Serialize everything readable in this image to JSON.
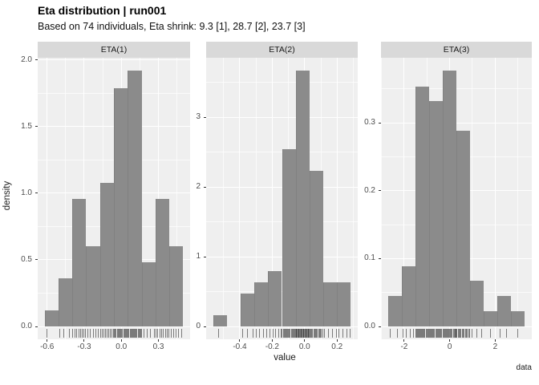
{
  "title": "Eta distribution | run001",
  "subtitle": "Based on 74 individuals, Eta shrink: 9.3 [1], 28.7 [2], 23.7 [3]",
  "caption": "data",
  "axes": {
    "x_label": "value",
    "y_label": "density"
  },
  "colors": {
    "bar": "#8B8B8B",
    "bar_seam": "rgba(0,0,0,0.07)",
    "panel_bg": "#EFEFEF",
    "strip_bg": "#D9D9D9",
    "grid_major": "#FFFFFF",
    "grid_minor": "rgba(255,255,255,0.65)",
    "axis_text": "#4D4D4D",
    "tick_mark": "#333333",
    "rug": "rgba(26,26,26,0.55)"
  },
  "chart_data": {
    "type": "bar",
    "subtype": "faceted-histogram-density",
    "grid": true,
    "legend": "none",
    "facets": [
      {
        "label": "ETA(1)",
        "x_range": [
          -0.676,
          0.556
        ],
        "y_range": [
          -0.096,
          2.016
        ],
        "x_ticks": {
          "values": [
            -0.6,
            -0.3,
            0.0,
            0.3
          ],
          "labels": [
            "-0.6",
            "-0.3",
            "0.0",
            "0.3"
          ]
        },
        "y_ticks": {
          "values": [
            0.0,
            0.5,
            1.0,
            1.5,
            2.0
          ],
          "labels": [
            "0.0",
            "0.5",
            "1.0",
            "1.5",
            "2.0"
          ]
        },
        "x_minor": [
          -0.45,
          -0.15,
          0.15,
          0.45
        ],
        "y_minor": [
          0.25,
          0.75,
          1.25,
          1.75
        ],
        "bins": {
          "start": -0.62,
          "width": 0.112
        },
        "densities": [
          0.12,
          0.36,
          0.96,
          0.6,
          1.08,
          1.79,
          1.92,
          0.48,
          0.96,
          0.6
        ],
        "rug": [
          -0.6,
          -0.5,
          -0.465,
          -0.42,
          -0.392,
          -0.377,
          -0.363,
          -0.344,
          -0.331,
          -0.318,
          -0.304,
          -0.289,
          -0.272,
          -0.252,
          -0.228,
          -0.206,
          -0.188,
          -0.17,
          -0.156,
          -0.141,
          -0.128,
          -0.113,
          -0.101,
          -0.09,
          -0.077,
          -0.064,
          -0.056,
          -0.048,
          -0.041,
          -0.033,
          -0.026,
          -0.018,
          -0.011,
          -0.004,
          0.004,
          0.011,
          0.019,
          0.026,
          0.034,
          0.041,
          0.049,
          0.056,
          0.063,
          0.07,
          0.077,
          0.085,
          0.092,
          0.099,
          0.106,
          0.113,
          0.121,
          0.128,
          0.135,
          0.143,
          0.15,
          0.157,
          0.163,
          0.182,
          0.208,
          0.238,
          0.268,
          0.281,
          0.296,
          0.31,
          0.325,
          0.341,
          0.356,
          0.371,
          0.386,
          0.401,
          0.422,
          0.443,
          0.465,
          0.488
        ]
      },
      {
        "label": "ETA(2)",
        "x_range": [
          -0.6075,
          0.3275
        ],
        "y_range": [
          -0.184,
          3.854
        ],
        "x_ticks": {
          "values": [
            -0.4,
            -0.2,
            0.0,
            0.2
          ],
          "labels": [
            "-0.4",
            "-0.2",
            "0.0",
            "0.2"
          ]
        },
        "y_ticks": {
          "values": [
            0,
            1,
            2,
            3
          ],
          "labels": [
            "0",
            "1",
            "2",
            "3"
          ]
        },
        "x_minor": [
          -0.5,
          -0.3,
          -0.1,
          0.1,
          0.3
        ],
        "y_minor": [
          0.5,
          1.5,
          2.5,
          3.5
        ],
        "bins": {
          "start": -0.565,
          "width": 0.085
        },
        "densities": [
          0.16,
          0,
          0.47,
          0.63,
          0.79,
          2.54,
          3.67,
          2.23,
          0.63,
          0.63
        ],
        "rug": [
          -0.53,
          -0.38,
          -0.352,
          -0.318,
          -0.3,
          -0.278,
          -0.254,
          -0.232,
          -0.214,
          -0.196,
          -0.179,
          -0.162,
          -0.147,
          -0.138,
          -0.1325,
          -0.127,
          -0.1215,
          -0.116,
          -0.1105,
          -0.105,
          -0.0995,
          -0.094,
          -0.0885,
          -0.083,
          -0.0775,
          -0.072,
          -0.0665,
          -0.061,
          -0.0555,
          -0.0525,
          -0.0488,
          -0.0451,
          -0.0414,
          -0.0377,
          -0.034,
          -0.0303,
          -0.0266,
          -0.0229,
          -0.0192,
          -0.0155,
          -0.0118,
          -0.0081,
          -0.0044,
          -0.0007,
          0.003,
          0.0067,
          0.0104,
          0.0141,
          0.0178,
          0.0215,
          0.0252,
          0.0289,
          0.032,
          0.038,
          0.044,
          0.05,
          0.056,
          0.062,
          0.068,
          0.074,
          0.08,
          0.086,
          0.092,
          0.098,
          0.104,
          0.11,
          0.124,
          0.149,
          0.173,
          0.196,
          0.212,
          0.236,
          0.259,
          0.281
        ]
      },
      {
        "label": "ETA(3)",
        "x_range": [
          -3.02,
          3.61
        ],
        "y_range": [
          -0.0189,
          0.3959
        ],
        "x_ticks": {
          "values": [
            -2,
            0,
            2
          ],
          "labels": [
            "-2",
            "0",
            "2"
          ]
        },
        "y_ticks": {
          "values": [
            0.0,
            0.1,
            0.2,
            0.3
          ],
          "labels": [
            "0.0",
            "0.1",
            "0.2",
            "0.3"
          ]
        },
        "x_minor": [
          -3,
          -1,
          1,
          3
        ],
        "y_minor": [
          0.05,
          0.15,
          0.25,
          0.35
        ],
        "bins": {
          "start": -2.72,
          "width": 0.603
        },
        "densities": [
          0.045,
          0.089,
          0.353,
          0.332,
          0.377,
          0.288,
          0.067,
          0.022,
          0.045,
          0.022
        ],
        "rug": [
          -2.6,
          -2.3,
          -2.05,
          -1.9,
          -1.74,
          -1.58,
          -1.5,
          -1.462,
          -1.424,
          -1.386,
          -1.348,
          -1.31,
          -1.272,
          -1.234,
          -1.196,
          -1.158,
          -1.12,
          -1.082,
          -1.044,
          -1.006,
          -0.968,
          -0.93,
          -0.9,
          -0.86,
          -0.82,
          -0.78,
          -0.74,
          -0.7,
          -0.66,
          -0.62,
          -0.58,
          -0.54,
          -0.5,
          -0.46,
          -0.42,
          -0.38,
          -0.34,
          -0.3,
          -0.262,
          -0.224,
          -0.186,
          -0.148,
          -0.11,
          -0.072,
          -0.034,
          0.004,
          0.042,
          0.08,
          0.118,
          0.156,
          0.194,
          0.232,
          0.26,
          0.29,
          0.32,
          0.366,
          0.412,
          0.458,
          0.504,
          0.55,
          0.596,
          0.642,
          0.688,
          0.734,
          0.78,
          0.826,
          0.87,
          1.0,
          1.2,
          1.4,
          1.8,
          2.2,
          2.5,
          3.0
        ]
      }
    ]
  }
}
